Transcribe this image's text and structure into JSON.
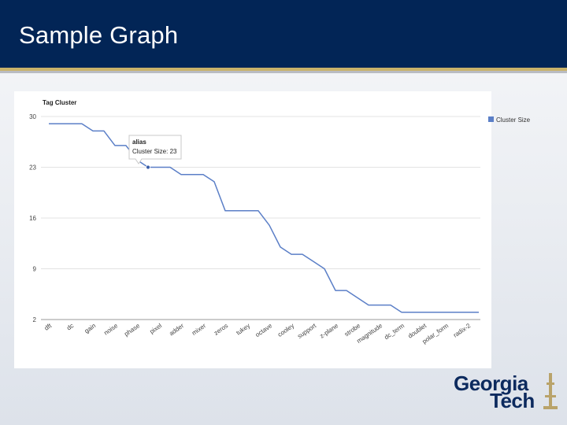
{
  "slide": {
    "title": "Sample Graph"
  },
  "logo": {
    "line1": "Georgia",
    "line2": "Tech"
  },
  "colors": {
    "header": "#022556",
    "accent_gold": "#c9b26a",
    "series": "#5b7fc7",
    "logo": "#0c2a5e"
  },
  "chart_data": {
    "type": "line",
    "title": "Tag Cluster",
    "xlabel": "",
    "ylabel": "",
    "ylim": [
      2,
      30
    ],
    "yticks": [
      2,
      9,
      16,
      23,
      30
    ],
    "grid": true,
    "legend_position": "top-right",
    "categories": [
      "dft",
      "dc",
      "gain",
      "noise",
      "phase",
      "pixel",
      "adder",
      "mixer",
      "zeros",
      "tukey",
      "octave",
      "cooley",
      "support",
      "z-plane",
      "strobe",
      "magnitude",
      "dc_term",
      "doublet",
      "polar_form",
      "radix-2"
    ],
    "series": [
      {
        "name": "Cluster Size",
        "x": [
          0,
          0.5,
          1,
          1.5,
          2,
          2.5,
          3,
          3.5,
          4,
          4.5,
          5,
          5.5,
          6,
          6.5,
          7,
          7.5,
          8,
          8.5,
          9,
          9.5,
          10,
          10.5,
          11,
          11.5,
          12,
          12.5,
          13,
          13.5,
          14,
          14.5,
          15,
          15.5,
          16,
          16.5,
          17,
          17.5,
          18,
          18.5,
          19,
          19.5
        ],
        "values": [
          29,
          29,
          29,
          29,
          28,
          28,
          26,
          26,
          24,
          23,
          23,
          23,
          22,
          22,
          22,
          21,
          17,
          17,
          17,
          17,
          15,
          12,
          11,
          11,
          10,
          9,
          6,
          6,
          5,
          4,
          4,
          4,
          3,
          3,
          3,
          3,
          3,
          3,
          3,
          3
        ]
      }
    ],
    "tooltip": {
      "label": "alias",
      "series_label": "Cluster Size: 23",
      "x": 4.5,
      "value": 23
    }
  }
}
